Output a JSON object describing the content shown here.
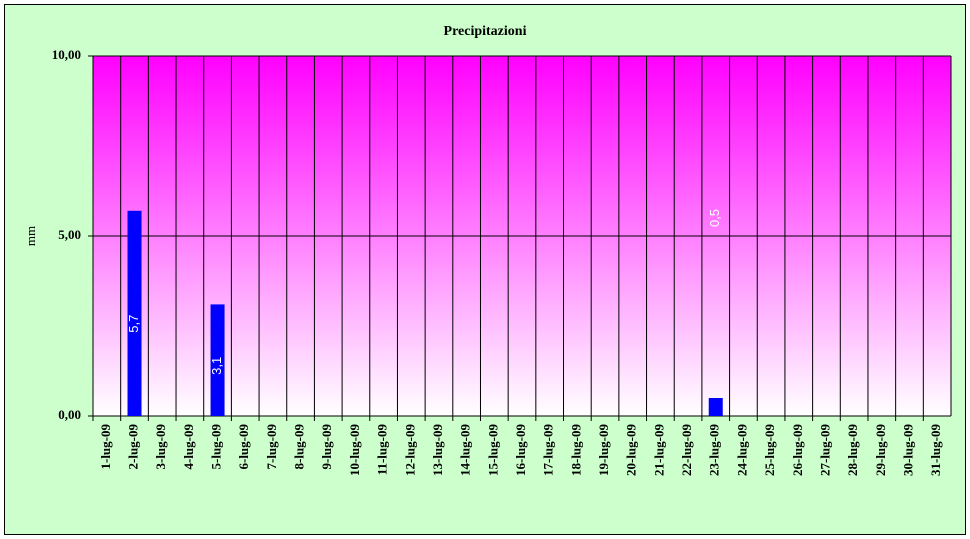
{
  "chart_data": {
    "type": "bar",
    "title": "Precipitazioni",
    "y_label": "mm",
    "categories": [
      "1-lug-09",
      "2-lug-09",
      "3-lug-09",
      "4-lug-09",
      "5-lug-09",
      "6-lug-09",
      "7-lug-09",
      "8-lug-09",
      "9-lug-09",
      "10-lug-09",
      "11-lug-09",
      "12-lug-09",
      "13-lug-09",
      "14-lug-09",
      "15-lug-09",
      "16-lug-09",
      "17-lug-09",
      "18-lug-09",
      "19-lug-09",
      "20-lug-09",
      "21-lug-09",
      "22-lug-09",
      "23-lug-09",
      "24-lug-09",
      "25-lug-09",
      "26-lug-09",
      "27-lug-09",
      "28-lug-09",
      "29-lug-09",
      "30-lug-09",
      "31-lug-09"
    ],
    "values": [
      null,
      5.7,
      null,
      null,
      3.1,
      null,
      null,
      null,
      null,
      null,
      null,
      null,
      null,
      null,
      null,
      null,
      null,
      null,
      null,
      null,
      null,
      null,
      0.5,
      null,
      null,
      null,
      null,
      null,
      null,
      null,
      null
    ],
    "value_labels": [
      null,
      "5,7",
      null,
      null,
      "3,1",
      null,
      null,
      null,
      null,
      null,
      null,
      null,
      null,
      null,
      null,
      null,
      null,
      null,
      null,
      null,
      null,
      null,
      "0,5",
      null,
      null,
      null,
      null,
      null,
      null,
      null,
      null
    ],
    "color": "#0000ff",
    "ylim": [
      0,
      10
    ],
    "yticks": [
      {
        "value": 0,
        "label": "0,00"
      },
      {
        "value": 5,
        "label": "5,00"
      },
      {
        "value": 10,
        "label": "10,00"
      }
    ],
    "grid": true
  }
}
